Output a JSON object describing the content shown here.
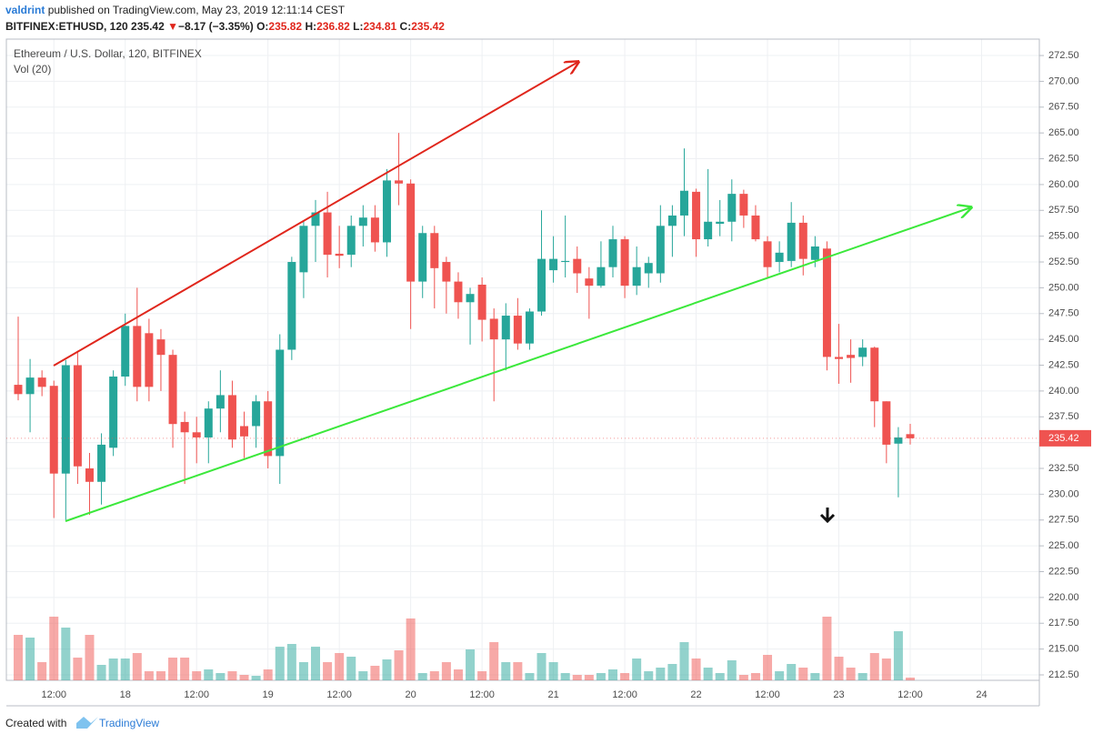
{
  "header": {
    "author": "valdrint",
    "published": "published on TradingView.com, May 23, 2019 12:11:14 CEST",
    "symbol": "BITFINEX:ETHUSD, 120",
    "arrow": "▼",
    "change": "−8.17 (−3.35%)",
    "labels": [
      "O:",
      "H:",
      "L:",
      "C:"
    ]
  },
  "chart_data": {
    "type": "candlestick",
    "title": "Ethereum / U.S. Dollar, 120, BITFINEX",
    "volume_label": "Vol (20)",
    "categories": [
      null,
      null,
      null,
      "12:00",
      null,
      null,
      null,
      null,
      null,
      "18",
      null,
      null,
      null,
      null,
      null,
      "12:00",
      null,
      null,
      null,
      null,
      null,
      "19",
      null,
      null,
      null,
      null,
      null,
      "12:00",
      null,
      null,
      null,
      null,
      null,
      "20",
      null,
      null,
      null,
      null,
      null,
      "12:00",
      null,
      null,
      null,
      null,
      null,
      "21",
      null,
      null,
      null,
      null,
      null,
      "12:00",
      null,
      null,
      null,
      null,
      null,
      "22",
      null,
      null,
      null,
      null,
      null,
      "12:00",
      null,
      null,
      null,
      null,
      null,
      "23",
      null,
      null,
      null,
      null,
      null,
      "12:00",
      null,
      null,
      null,
      null,
      null,
      "24"
    ],
    "open": [
      240.6,
      239.7,
      241.3,
      240.5,
      232.0,
      242.5,
      232.5,
      231.2,
      234.5,
      241.4,
      246.3,
      245.6,
      245.0,
      243.5,
      237.0,
      236.0,
      235.5,
      238.3,
      239.6,
      236.6,
      236.6,
      239.0,
      233.7,
      244.0,
      251.5,
      256.0,
      257.3,
      253.3,
      253.2,
      256.0,
      256.8,
      254.4,
      260.4,
      260.1,
      250.6,
      255.3,
      252.5,
      250.6,
      248.6,
      250.3,
      247.0,
      245.0,
      247.3,
      244.6,
      247.7,
      251.7,
      252.5,
      252.8,
      250.9,
      250.2,
      252.0,
      254.7,
      250.2,
      251.4,
      251.4,
      256.0,
      257.0,
      259.3,
      254.7,
      256.2,
      256.4,
      259.1,
      257.0,
      254.5,
      252.5,
      252.6,
      256.3,
      252.7,
      253.8,
      243.3,
      243.5,
      243.3,
      244.2,
      239.0,
      234.9,
      235.82,
      null,
      null,
      null,
      null,
      null,
      null
    ],
    "high": [
      247.2,
      243.1,
      242.0,
      241.0,
      243.0,
      243.9,
      234.0,
      235.9,
      242.0,
      247.5,
      250.0,
      247.0,
      246.0,
      244.0,
      238.0,
      237.5,
      239.0,
      242.0,
      241.0,
      238.0,
      239.6,
      240.0,
      245.5,
      253.0,
      256.5,
      258.5,
      259.3,
      256.0,
      257.0,
      258.0,
      258.0,
      261.5,
      265.0,
      260.5,
      256.0,
      256.0,
      253.0,
      251.5,
      250.0,
      251.0,
      248.0,
      248.5,
      249.0,
      248.0,
      257.5,
      255.0,
      257.0,
      254.0,
      252.0,
      254.5,
      256.0,
      255.0,
      254.0,
      253.0,
      258.0,
      258.0,
      263.5,
      259.6,
      261.5,
      258.5,
      260.5,
      259.5,
      258.0,
      255.0,
      254.5,
      258.3,
      257.0,
      255.0,
      254.5,
      246.5,
      245.0,
      245.0,
      244.3,
      239.0,
      236.5,
      236.82,
      null,
      null,
      null,
      null,
      null,
      null
    ],
    "low": [
      239.1,
      236.0,
      239.5,
      227.7,
      227.5,
      231.0,
      228.0,
      229.0,
      233.7,
      240.5,
      239.0,
      239.0,
      240.0,
      234.5,
      231.0,
      233.0,
      233.0,
      236.0,
      234.5,
      233.5,
      234.5,
      232.5,
      231.0,
      243.0,
      249.0,
      252.5,
      251.0,
      251.9,
      252.0,
      254.0,
      253.5,
      253.0,
      258.0,
      246.0,
      249.0,
      248.0,
      247.5,
      247.0,
      244.5,
      244.8,
      239.0,
      242.0,
      244.0,
      244.0,
      247.3,
      250.5,
      251.0,
      249.5,
      247.0,
      250.0,
      251.0,
      249.0,
      249.3,
      250.0,
      250.5,
      253.0,
      255.0,
      253.0,
      254.0,
      255.0,
      254.5,
      255.8,
      254.5,
      251.0,
      251.5,
      252.0,
      251.2,
      252.0,
      242.0,
      240.7,
      240.8,
      242.4,
      236.5,
      233.0,
      229.7,
      234.81,
      null,
      null,
      null,
      null,
      null,
      null
    ],
    "close": [
      239.7,
      241.3,
      240.4,
      232.0,
      242.5,
      232.7,
      231.2,
      234.8,
      241.4,
      246.3,
      240.4,
      240.4,
      243.5,
      236.8,
      236.0,
      235.5,
      238.3,
      239.6,
      235.3,
      235.6,
      239.0,
      233.7,
      244.0,
      252.5,
      256.0,
      257.3,
      253.2,
      253.1,
      256.0,
      256.8,
      254.4,
      260.4,
      260.1,
      250.6,
      255.3,
      251.9,
      250.6,
      248.6,
      249.4,
      246.9,
      245.0,
      247.3,
      244.6,
      247.7,
      252.8,
      252.8,
      252.6,
      251.4,
      250.2,
      252.0,
      254.7,
      250.2,
      252.0,
      252.4,
      256.0,
      257.0,
      259.4,
      254.7,
      256.4,
      256.4,
      259.1,
      257.0,
      254.7,
      252.0,
      253.4,
      256.3,
      252.8,
      254.0,
      243.3,
      243.1,
      243.2,
      244.2,
      239.0,
      234.8,
      235.5,
      235.42,
      null,
      null,
      null,
      null,
      null,
      null
    ],
    "volume": [
      50,
      47,
      20,
      70,
      58,
      25,
      50,
      17,
      24,
      24,
      30,
      10,
      10,
      25,
      25,
      10,
      12,
      8,
      10,
      6,
      5,
      12,
      37,
      40,
      20,
      37,
      20,
      30,
      26,
      10,
      16,
      23,
      33,
      68,
      8,
      10,
      20,
      12,
      34,
      10,
      42,
      20,
      20,
      8,
      30,
      20,
      8,
      6,
      6,
      8,
      12,
      8,
      24,
      10,
      14,
      18,
      42,
      24,
      14,
      8,
      22,
      6,
      8,
      28,
      10,
      18,
      14,
      8,
      70,
      26,
      14,
      8,
      30,
      24,
      54,
      3,
      null,
      null,
      null,
      null,
      null,
      null
    ],
    "up_color": "#26a69a",
    "down_color": "#ef5350",
    "ylim": [
      211.97,
      274.09
    ],
    "yticks": [
      {
        "value": 212.5,
        "label": "212.50"
      },
      {
        "value": 215,
        "label": "215.00"
      },
      {
        "value": 217.5,
        "label": "217.50"
      },
      {
        "value": 220,
        "label": "220.00"
      },
      {
        "value": 222.5,
        "label": "222.50"
      },
      {
        "value": 225,
        "label": "225.00"
      },
      {
        "value": 227.5,
        "label": "227.50"
      },
      {
        "value": 230,
        "label": "230.00"
      },
      {
        "value": 232.5,
        "label": "232.50"
      },
      {
        "value": 235,
        "label": "235.00"
      },
      {
        "value": 237.5,
        "label": "237.50"
      },
      {
        "value": 240,
        "label": "240.00"
      },
      {
        "value": 242.5,
        "label": "242.50"
      },
      {
        "value": 245,
        "label": "245.00"
      },
      {
        "value": 247.5,
        "label": "247.50"
      },
      {
        "value": 250,
        "label": "250.00"
      },
      {
        "value": 252.5,
        "label": "252.50"
      },
      {
        "value": 255,
        "label": "255.00"
      },
      {
        "value": 257.5,
        "label": "257.50"
      },
      {
        "value": 260,
        "label": "260.00"
      },
      {
        "value": 262.5,
        "label": "262.50"
      },
      {
        "value": 265,
        "label": "265.00"
      },
      {
        "value": 267.5,
        "label": "267.50"
      },
      {
        "value": 270,
        "label": "270.00"
      },
      {
        "value": 272.5,
        "label": "272.50"
      }
    ],
    "grid": true
  },
  "footer": {
    "text": "Created with",
    "brand": "TradingView"
  }
}
